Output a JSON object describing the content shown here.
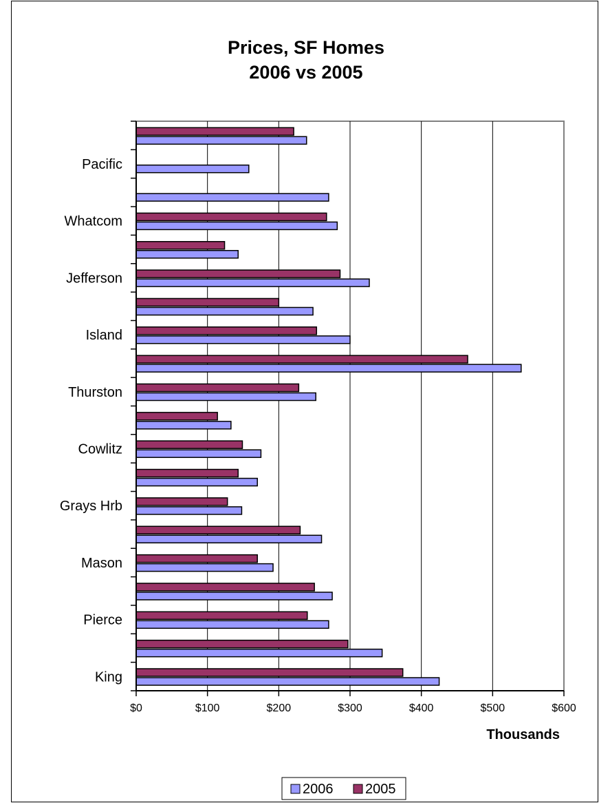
{
  "chart_data": {
    "type": "bar",
    "orientation": "horizontal",
    "title_lines": [
      "Prices, SF Homes",
      "2006 vs 2005"
    ],
    "xlabel": "Thousands",
    "xlim": [
      0,
      600
    ],
    "x_ticks": [
      0,
      100,
      200,
      300,
      400,
      500,
      600
    ],
    "x_tick_labels": [
      "$0",
      "$100",
      "$200",
      "$300",
      "$400",
      "$500",
      "$600"
    ],
    "grid": "vertical major gridlines",
    "legend_position": "bottom-center",
    "series_colors": {
      "2006": "#9999ff",
      "2005": "#993366"
    },
    "categories": [
      {
        "label": "King",
        "v2006": 425,
        "v2005": 374
      },
      {
        "label": "",
        "v2006": 345,
        "v2005": 297
      },
      {
        "label": "Pierce",
        "v2006": 270,
        "v2005": 240
      },
      {
        "label": "",
        "v2006": 275,
        "v2005": 250
      },
      {
        "label": "Mason",
        "v2006": 192,
        "v2005": 170
      },
      {
        "label": "",
        "v2006": 260,
        "v2005": 230
      },
      {
        "label": "Grays Hrb",
        "v2006": 148,
        "v2005": 128
      },
      {
        "label": "",
        "v2006": 170,
        "v2005": 143
      },
      {
        "label": "Cowlitz",
        "v2006": 175,
        "v2005": 149
      },
      {
        "label": "",
        "v2006": 133,
        "v2005": 114
      },
      {
        "label": "Thurston",
        "v2006": 252,
        "v2005": 228
      },
      {
        "label": "",
        "v2006": 540,
        "v2005": 465
      },
      {
        "label": "Island",
        "v2006": 300,
        "v2005": 253
      },
      {
        "label": "",
        "v2006": 248,
        "v2005": 200
      },
      {
        "label": "Jefferson",
        "v2006": 327,
        "v2005": 286
      },
      {
        "label": "",
        "v2006": 143,
        "v2005": 124
      },
      {
        "label": "Whatcom",
        "v2006": 282,
        "v2005": 267
      },
      {
        "label": "",
        "v2006": 270,
        "v2005": null
      },
      {
        "label": "Pacific",
        "v2006": 158,
        "v2005": null
      },
      {
        "label": "",
        "v2006": 239,
        "v2005": 221
      }
    ],
    "legend": [
      {
        "name": "2006",
        "color": "#9999ff"
      },
      {
        "name": "2005",
        "color": "#993366"
      }
    ]
  }
}
